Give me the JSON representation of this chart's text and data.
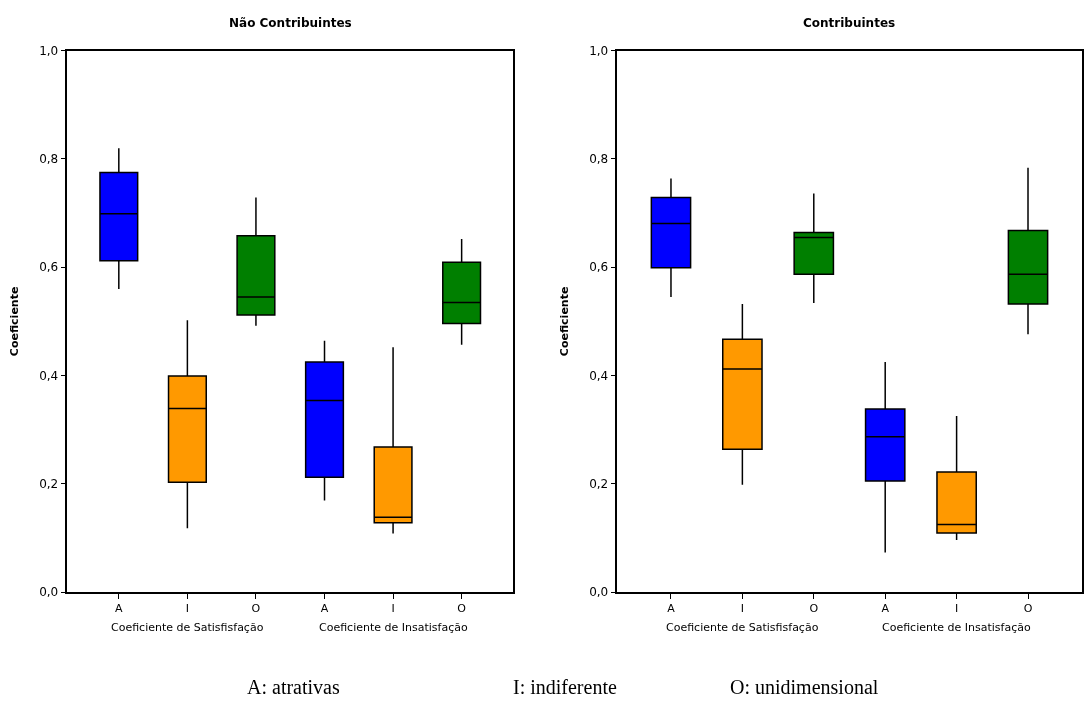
{
  "chart_data": [
    {
      "type": "box",
      "title": "Não Contribuintes",
      "ylabel": "Coeficiente",
      "categories": [
        "A",
        "I",
        "O",
        "A",
        "I",
        "O"
      ],
      "colors": [
        "#0000ff",
        "#ff9900",
        "#007f00",
        "#0000ff",
        "#ff9900",
        "#007f00"
      ],
      "boxes": [
        {
          "low": 0.56,
          "q1": 0.612,
          "median": 0.699,
          "q3": 0.775,
          "high": 0.82
        },
        {
          "low": 0.118,
          "q1": 0.203,
          "median": 0.339,
          "q3": 0.399,
          "high": 0.502
        },
        {
          "low": 0.492,
          "q1": 0.512,
          "median": 0.545,
          "q3": 0.658,
          "high": 0.729
        },
        {
          "low": 0.169,
          "q1": 0.212,
          "median": 0.354,
          "q3": 0.425,
          "high": 0.464
        },
        {
          "low": 0.108,
          "q1": 0.128,
          "median": 0.138,
          "q3": 0.268,
          "high": 0.452
        },
        {
          "low": 0.457,
          "q1": 0.496,
          "median": 0.535,
          "q3": 0.609,
          "high": 0.652
        }
      ],
      "ylim": [
        0,
        1
      ],
      "yticks": [
        {
          "value": 0,
          "label": "0,0"
        },
        {
          "value": 0.2,
          "label": "0,2"
        },
        {
          "value": 0.4,
          "label": "0,4"
        },
        {
          "value": 0.6,
          "label": "0,6"
        },
        {
          "value": 0.8,
          "label": "0,8"
        },
        {
          "value": 1,
          "label": "1,0"
        }
      ],
      "grid": false,
      "legend": false,
      "annotations": [
        "Coeficiente de Satisfisfação",
        "Coeficiente de Insatisfação"
      ]
    },
    {
      "type": "box",
      "title": "Contribuintes",
      "ylabel": "Coeficiente",
      "categories": [
        "A",
        "I",
        "O",
        "A",
        "I",
        "O"
      ],
      "colors": [
        "#0000ff",
        "#ff9900",
        "#007f00",
        "#0000ff",
        "#ff9900",
        "#007f00"
      ],
      "boxes": [
        {
          "low": 0.545,
          "q1": 0.599,
          "median": 0.681,
          "q3": 0.729,
          "high": 0.764
        },
        {
          "low": 0.198,
          "q1": 0.264,
          "median": 0.412,
          "q3": 0.467,
          "high": 0.532
        },
        {
          "low": 0.534,
          "q1": 0.587,
          "median": 0.655,
          "q3": 0.664,
          "high": 0.736
        },
        {
          "low": 0.073,
          "q1": 0.205,
          "median": 0.287,
          "q3": 0.338,
          "high": 0.425
        },
        {
          "low": 0.096,
          "q1": 0.109,
          "median": 0.125,
          "q3": 0.222,
          "high": 0.325
        },
        {
          "low": 0.476,
          "q1": 0.532,
          "median": 0.587,
          "q3": 0.668,
          "high": 0.784
        }
      ],
      "ylim": [
        0,
        1
      ],
      "yticks": [
        {
          "value": 0,
          "label": "0,0"
        },
        {
          "value": 0.2,
          "label": "0,2"
        },
        {
          "value": 0.4,
          "label": "0,4"
        },
        {
          "value": 0.6,
          "label": "0,6"
        },
        {
          "value": 0.8,
          "label": "0,8"
        },
        {
          "value": 1,
          "label": "1,0"
        }
      ],
      "grid": false,
      "legend": false,
      "annotations": [
        "Coeficiente de Satisfisfação",
        "Coeficiente de Insatisfação",
        "A: atrativas",
        "I: indiferente",
        "O: unidimensional"
      ]
    }
  ]
}
